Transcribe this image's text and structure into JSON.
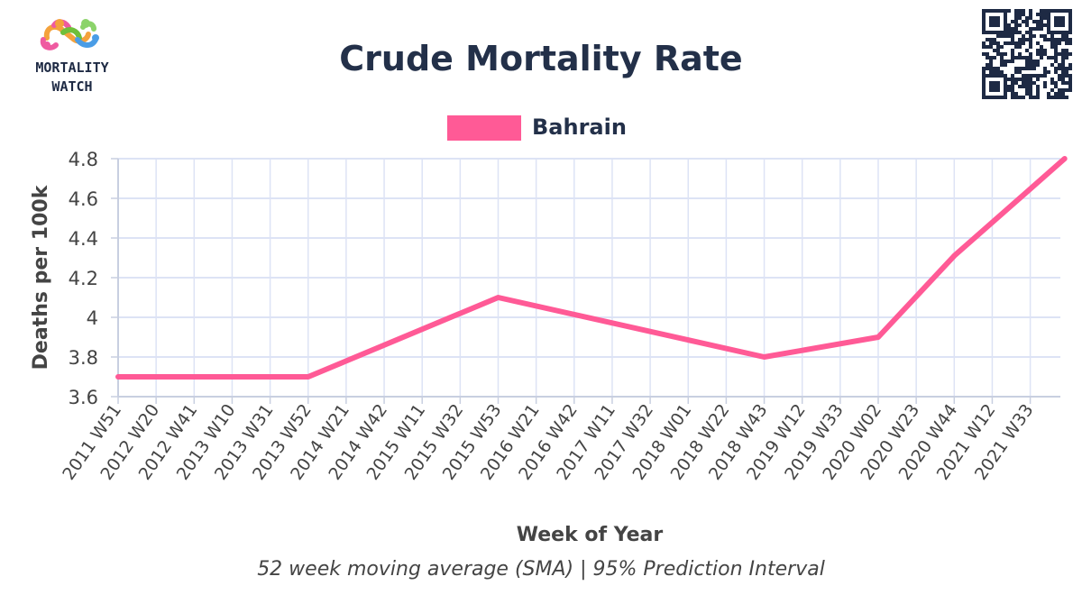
{
  "logo": {
    "line1": "MORTALITY",
    "line2": "WATCH"
  },
  "chart_data": {
    "type": "line",
    "title": "Crude Mortality Rate",
    "xlabel": "Week of Year",
    "ylabel": "Deaths per 100k",
    "subtitle": "52 week moving average (SMA) | 95% Prediction Interval",
    "legend_position": "top-center",
    "grid": true,
    "ylim": [
      3.6,
      4.8
    ],
    "yticks": [
      "3.6",
      "3.8",
      "4",
      "4.2",
      "4.4",
      "4.6",
      "4.8"
    ],
    "categories": [
      "2011 W51",
      "2012 W20",
      "2012 W41",
      "2013 W10",
      "2013 W31",
      "2013 W52",
      "2014 W21",
      "2014 W42",
      "2015 W11",
      "2015 W32",
      "2015 W53",
      "2016 W21",
      "2016 W42",
      "2017 W11",
      "2017 W32",
      "2018 W01",
      "2018 W22",
      "2018 W43",
      "2019 W12",
      "2019 W33",
      "2020 W02",
      "2020 W23",
      "2020 W44",
      "2021 W12",
      "2021 W33"
    ],
    "series": [
      {
        "name": "Bahrain",
        "color": "#ff5a96",
        "points": [
          {
            "x": "2011 W51",
            "y": 3.7
          },
          {
            "x": "2013 W52",
            "y": 3.7
          },
          {
            "x": "2015 W53",
            "y": 4.1
          },
          {
            "x": "2018 W43",
            "y": 3.8
          },
          {
            "x": "2020 W02",
            "y": 3.9
          },
          {
            "x": "2020 W44",
            "y": 4.31
          },
          {
            "x": "2021 W52",
            "y": 4.8
          }
        ]
      }
    ]
  }
}
